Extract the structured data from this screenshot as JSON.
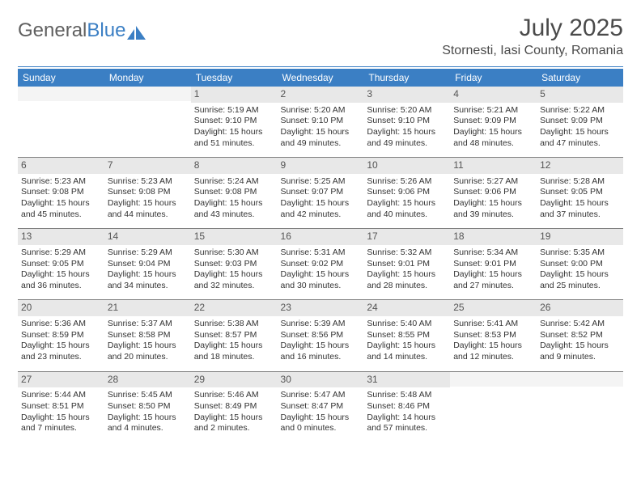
{
  "logo": {
    "text1": "General",
    "text2": "Blue"
  },
  "title": "July 2025",
  "location": "Stornesti, Iasi County, Romania",
  "colors": {
    "brand": "#3b7fc4",
    "header_text": "#ffffff",
    "daynum_bg": "#e8e8e8",
    "text": "#333333",
    "rule": "#808080"
  },
  "weekdays": [
    "Sunday",
    "Monday",
    "Tuesday",
    "Wednesday",
    "Thursday",
    "Friday",
    "Saturday"
  ],
  "weeks": [
    [
      null,
      null,
      {
        "n": "1",
        "sr": "5:19 AM",
        "ss": "9:10 PM",
        "d1": "15 hours",
        "d2": "and 51 minutes."
      },
      {
        "n": "2",
        "sr": "5:20 AM",
        "ss": "9:10 PM",
        "d1": "15 hours",
        "d2": "and 49 minutes."
      },
      {
        "n": "3",
        "sr": "5:20 AM",
        "ss": "9:10 PM",
        "d1": "15 hours",
        "d2": "and 49 minutes."
      },
      {
        "n": "4",
        "sr": "5:21 AM",
        "ss": "9:09 PM",
        "d1": "15 hours",
        "d2": "and 48 minutes."
      },
      {
        "n": "5",
        "sr": "5:22 AM",
        "ss": "9:09 PM",
        "d1": "15 hours",
        "d2": "and 47 minutes."
      }
    ],
    [
      {
        "n": "6",
        "sr": "5:23 AM",
        "ss": "9:08 PM",
        "d1": "15 hours",
        "d2": "and 45 minutes."
      },
      {
        "n": "7",
        "sr": "5:23 AM",
        "ss": "9:08 PM",
        "d1": "15 hours",
        "d2": "and 44 minutes."
      },
      {
        "n": "8",
        "sr": "5:24 AM",
        "ss": "9:08 PM",
        "d1": "15 hours",
        "d2": "and 43 minutes."
      },
      {
        "n": "9",
        "sr": "5:25 AM",
        "ss": "9:07 PM",
        "d1": "15 hours",
        "d2": "and 42 minutes."
      },
      {
        "n": "10",
        "sr": "5:26 AM",
        "ss": "9:06 PM",
        "d1": "15 hours",
        "d2": "and 40 minutes."
      },
      {
        "n": "11",
        "sr": "5:27 AM",
        "ss": "9:06 PM",
        "d1": "15 hours",
        "d2": "and 39 minutes."
      },
      {
        "n": "12",
        "sr": "5:28 AM",
        "ss": "9:05 PM",
        "d1": "15 hours",
        "d2": "and 37 minutes."
      }
    ],
    [
      {
        "n": "13",
        "sr": "5:29 AM",
        "ss": "9:05 PM",
        "d1": "15 hours",
        "d2": "and 36 minutes."
      },
      {
        "n": "14",
        "sr": "5:29 AM",
        "ss": "9:04 PM",
        "d1": "15 hours",
        "d2": "and 34 minutes."
      },
      {
        "n": "15",
        "sr": "5:30 AM",
        "ss": "9:03 PM",
        "d1": "15 hours",
        "d2": "and 32 minutes."
      },
      {
        "n": "16",
        "sr": "5:31 AM",
        "ss": "9:02 PM",
        "d1": "15 hours",
        "d2": "and 30 minutes."
      },
      {
        "n": "17",
        "sr": "5:32 AM",
        "ss": "9:01 PM",
        "d1": "15 hours",
        "d2": "and 28 minutes."
      },
      {
        "n": "18",
        "sr": "5:34 AM",
        "ss": "9:01 PM",
        "d1": "15 hours",
        "d2": "and 27 minutes."
      },
      {
        "n": "19",
        "sr": "5:35 AM",
        "ss": "9:00 PM",
        "d1": "15 hours",
        "d2": "and 25 minutes."
      }
    ],
    [
      {
        "n": "20",
        "sr": "5:36 AM",
        "ss": "8:59 PM",
        "d1": "15 hours",
        "d2": "and 23 minutes."
      },
      {
        "n": "21",
        "sr": "5:37 AM",
        "ss": "8:58 PM",
        "d1": "15 hours",
        "d2": "and 20 minutes."
      },
      {
        "n": "22",
        "sr": "5:38 AM",
        "ss": "8:57 PM",
        "d1": "15 hours",
        "d2": "and 18 minutes."
      },
      {
        "n": "23",
        "sr": "5:39 AM",
        "ss": "8:56 PM",
        "d1": "15 hours",
        "d2": "and 16 minutes."
      },
      {
        "n": "24",
        "sr": "5:40 AM",
        "ss": "8:55 PM",
        "d1": "15 hours",
        "d2": "and 14 minutes."
      },
      {
        "n": "25",
        "sr": "5:41 AM",
        "ss": "8:53 PM",
        "d1": "15 hours",
        "d2": "and 12 minutes."
      },
      {
        "n": "26",
        "sr": "5:42 AM",
        "ss": "8:52 PM",
        "d1": "15 hours",
        "d2": "and 9 minutes."
      }
    ],
    [
      {
        "n": "27",
        "sr": "5:44 AM",
        "ss": "8:51 PM",
        "d1": "15 hours",
        "d2": "and 7 minutes."
      },
      {
        "n": "28",
        "sr": "5:45 AM",
        "ss": "8:50 PM",
        "d1": "15 hours",
        "d2": "and 4 minutes."
      },
      {
        "n": "29",
        "sr": "5:46 AM",
        "ss": "8:49 PM",
        "d1": "15 hours",
        "d2": "and 2 minutes."
      },
      {
        "n": "30",
        "sr": "5:47 AM",
        "ss": "8:47 PM",
        "d1": "15 hours",
        "d2": "and 0 minutes."
      },
      {
        "n": "31",
        "sr": "5:48 AM",
        "ss": "8:46 PM",
        "d1": "14 hours",
        "d2": "and 57 minutes."
      },
      null,
      null
    ]
  ],
  "labels": {
    "sunrise": "Sunrise: ",
    "sunset": "Sunset: ",
    "daylight": "Daylight: "
  }
}
